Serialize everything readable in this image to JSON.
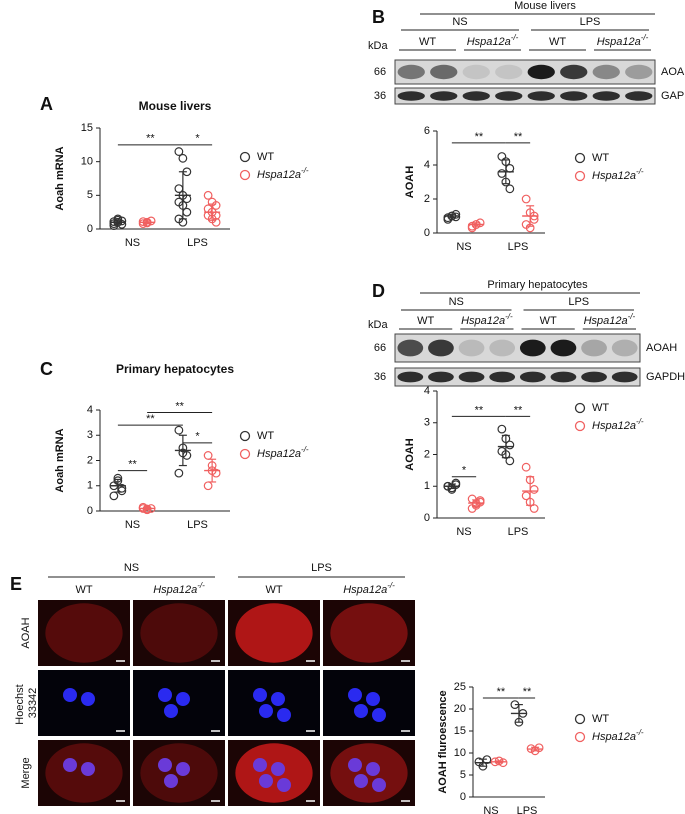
{
  "figure": {
    "panels": [
      "A",
      "B",
      "C",
      "D",
      "E"
    ],
    "blots": [
      {
        "title": "Mouse livers",
        "groups": [
          "NS",
          "LPS"
        ],
        "lanes": [
          "WT",
          "Hspa12a-/-",
          "WT",
          "Hspa12a-/-"
        ],
        "unit": "kDa",
        "markers": [
          66,
          36
        ],
        "bands": [
          "AOAH",
          "GAPDH"
        ]
      },
      {
        "title": "Primary hepatocytes",
        "groups": [
          "NS",
          "LPS"
        ],
        "lanes": [
          "WT",
          "Hspa12a-/-",
          "WT",
          "Hspa12a-/-"
        ],
        "unit": "kDa",
        "markers": [
          66,
          36
        ],
        "bands": [
          "AOAH",
          "GAPDH"
        ]
      }
    ],
    "images": {
      "groups": [
        "NS",
        "LPS"
      ],
      "lanes": [
        "WT",
        "Hspa12a-/-",
        "WT",
        "Hspa12a-/-"
      ],
      "rows": [
        "AOAH",
        "Hoechst 33342",
        "Merge"
      ]
    }
  },
  "chart_data": [
    {
      "type": "dotplot",
      "title": "Mouse livers",
      "y_label": "Aoah mRNA",
      "categories": [
        "NS",
        "LPS"
      ],
      "ylim": [
        0,
        15
      ],
      "yticks": [
        0,
        5,
        10,
        15
      ],
      "series": [
        {
          "name": "WT",
          "color": "#333333",
          "values": [
            [
              0.5,
              1,
              1.2,
              0.8,
              1.5,
              0.7,
              1.1,
              1.3
            ],
            [
              11.5,
              10.5,
              8.5,
              6,
              5,
              4.5,
              4,
              3.5,
              2.5,
              1.5,
              1
            ]
          ],
          "mean": [
            1,
            5
          ],
          "sd": [
            0.3,
            3.5
          ]
        },
        {
          "name": "Hspa12a-/-",
          "color": "#f06060",
          "values": [
            [
              0.8,
              1,
              1.2,
              1.1,
              0.9
            ],
            [
              5,
              4,
              3.5,
              3,
              2.5,
              2,
              2,
              1.5,
              1
            ]
          ],
          "mean": [
            1,
            2.5
          ],
          "sd": [
            0.2,
            1.2
          ]
        }
      ],
      "annotations": [
        {
          "text": "**",
          "y": 12.5,
          "from": [
            0,
            0
          ],
          "to": [
            0,
            1
          ]
        },
        {
          "text": "*",
          "y": 12.5,
          "from": [
            0,
            1
          ],
          "to": [
            1,
            1
          ]
        }
      ]
    },
    {
      "type": "dotplot",
      "y_label": "AOAH",
      "categories": [
        "NS",
        "LPS"
      ],
      "ylim": [
        0,
        6
      ],
      "yticks": [
        0,
        2,
        4,
        6
      ],
      "series": [
        {
          "name": "WT",
          "color": "#333333",
          "values": [
            [
              0.8,
              1,
              1.1,
              0.9,
              1.0,
              0.95
            ],
            [
              4.5,
              4.2,
              3.8,
              3.5,
              3,
              2.6
            ]
          ],
          "mean": [
            1,
            3.6
          ],
          "sd": [
            0.1,
            0.7
          ]
        },
        {
          "name": "Hspa12a-/-",
          "color": "#f06060",
          "values": [
            [
              0.4,
              0.5,
              0.6,
              0.3,
              0.5
            ],
            [
              2,
              1.2,
              0.8,
              0.5,
              0.3,
              1
            ]
          ],
          "mean": [
            0.5,
            1
          ],
          "sd": [
            0.1,
            0.6
          ]
        }
      ],
      "annotations": [
        {
          "text": "**",
          "y": 5.3,
          "from": [
            0,
            0
          ],
          "to": [
            0,
            1
          ]
        },
        {
          "text": "**",
          "y": 5.3,
          "from": [
            0,
            1
          ],
          "to": [
            1,
            1
          ]
        }
      ]
    },
    {
      "type": "dotplot",
      "title": "Primary hepatocytes",
      "y_label": "Aoah mRNA",
      "categories": [
        "NS",
        "LPS"
      ],
      "ylim": [
        0,
        4
      ],
      "yticks": [
        0,
        1,
        2,
        3,
        4
      ],
      "series": [
        {
          "name": "WT",
          "color": "#333333",
          "values": [
            [
              1,
              1.3,
              0.8,
              0.6,
              1.2,
              0.9
            ],
            [
              3.2,
              2.5,
              2.2,
              1.5,
              2.3
            ]
          ],
          "mean": [
            1,
            2.4
          ],
          "sd": [
            0.25,
            0.6
          ]
        },
        {
          "name": "Hspa12a-/-",
          "color": "#f06060",
          "values": [
            [
              0.1,
              0.05,
              0.1,
              0.15,
              0.08
            ],
            [
              2.2,
              1.8,
              1.5,
              1.0,
              1.6
            ]
          ],
          "mean": [
            0.1,
            1.6
          ],
          "sd": [
            0.04,
            0.45
          ]
        }
      ],
      "annotations": [
        {
          "text": "**",
          "y": 1.6,
          "from": [
            0,
            0
          ],
          "to": [
            1,
            0
          ]
        },
        {
          "text": "**",
          "y": 3.4,
          "from": [
            0,
            0
          ],
          "to": [
            0,
            1
          ]
        },
        {
          "text": "**",
          "y": 3.9,
          "from": [
            1,
            0
          ],
          "to": [
            1,
            1
          ]
        },
        {
          "text": "*",
          "y": 2.7,
          "from": [
            0,
            1
          ],
          "to": [
            1,
            1
          ]
        }
      ]
    },
    {
      "type": "dotplot",
      "y_label": "AOAH",
      "categories": [
        "NS",
        "LPS"
      ],
      "ylim": [
        0,
        4
      ],
      "yticks": [
        0,
        1,
        2,
        3,
        4
      ],
      "series": [
        {
          "name": "WT",
          "color": "#333333",
          "values": [
            [
              1,
              0.9,
              1.1,
              1,
              0.95,
              1.05
            ],
            [
              2.8,
              2.5,
              2.3,
              2.1,
              2,
              1.8
            ]
          ],
          "mean": [
            1,
            2.25
          ],
          "sd": [
            0.07,
            0.35
          ]
        },
        {
          "name": "Hspa12a-/-",
          "color": "#f06060",
          "values": [
            [
              0.6,
              0.4,
              0.5,
              0.3,
              0.45,
              0.55
            ],
            [
              1.6,
              1.2,
              0.9,
              0.7,
              0.5,
              0.3
            ]
          ],
          "mean": [
            0.47,
            0.85
          ],
          "sd": [
            0.1,
            0.45
          ]
        }
      ],
      "annotations": [
        {
          "text": "*",
          "y": 1.3,
          "from": [
            0,
            0
          ],
          "to": [
            1,
            0
          ]
        },
        {
          "text": "**",
          "y": 3.2,
          "from": [
            0,
            0
          ],
          "to": [
            0,
            1
          ]
        },
        {
          "text": "**",
          "y": 3.2,
          "from": [
            0,
            1
          ],
          "to": [
            1,
            1
          ]
        }
      ]
    },
    {
      "type": "dotplot",
      "y_label": "AOAH fluroescence",
      "categories": [
        "NS",
        "LPS"
      ],
      "ylim": [
        0,
        25
      ],
      "yticks": [
        0,
        5,
        10,
        15,
        20,
        25
      ],
      "series": [
        {
          "name": "WT",
          "color": "#333333",
          "values": [
            [
              8,
              7,
              8.5
            ],
            [
              21,
              17,
              19
            ]
          ],
          "mean": [
            7.8,
            19
          ],
          "sd": [
            0.8,
            2
          ]
        },
        {
          "name": "Hspa12a-/-",
          "color": "#f06060",
          "values": [
            [
              8,
              8.2,
              7.8
            ],
            [
              11,
              10.5,
              11.2
            ]
          ],
          "mean": [
            8,
            10.9
          ],
          "sd": [
            0.2,
            0.4
          ]
        }
      ],
      "annotations": [
        {
          "text": "**",
          "y": 22.5,
          "from": [
            0,
            0
          ],
          "to": [
            0,
            1
          ]
        },
        {
          "text": "**",
          "y": 22.5,
          "from": [
            0,
            1
          ],
          "to": [
            1,
            1
          ]
        }
      ]
    }
  ]
}
